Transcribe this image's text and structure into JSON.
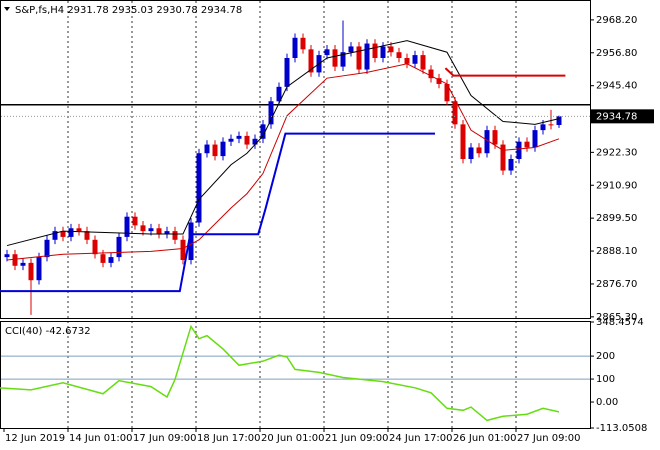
{
  "chart_data": [
    {
      "type": "candlestick",
      "title": "S&P,fs,H4 2931.78 2935.03 2930.78 2934.78",
      "categories": [
        "12 Jun 2019",
        null,
        null,
        null,
        null,
        null,
        null,
        null,
        "14 Jun 01:00",
        null,
        null,
        null,
        null,
        null,
        null,
        null,
        "17 Jun 09:00",
        null,
        null,
        null,
        null,
        null,
        null,
        null,
        "18 Jun 17:00",
        null,
        null,
        null,
        null,
        null,
        null,
        null,
        "20 Jun 01:00",
        null,
        null,
        null,
        null,
        null,
        null,
        null,
        "21 Jun 09:00",
        null,
        null,
        null,
        null,
        null,
        null,
        null,
        "24 Jun 17:00",
        null,
        null,
        null,
        null,
        null,
        null,
        null,
        "26 Jun 01:00",
        null,
        null,
        null,
        null,
        null,
        null,
        null,
        "27 Jun 09:00",
        null,
        null,
        null,
        null,
        null
      ],
      "open": [
        2886,
        2887,
        2883,
        2884,
        2878,
        2886,
        2892,
        2895,
        2893,
        2896,
        2895,
        2892,
        2887,
        2884,
        2886,
        2893,
        2900,
        2897,
        2895,
        2896,
        2894,
        2895,
        2892,
        2885,
        2898,
        2922,
        2925,
        2921,
        2926,
        2927,
        2928,
        2925,
        2927,
        2932,
        2940,
        2945,
        2955,
        2962,
        2958,
        2950,
        2956,
        2958,
        2952,
        2957,
        2959,
        2951,
        2960,
        2955,
        2959,
        2957,
        2955,
        2953,
        2956,
        2951,
        2948,
        2946,
        2940,
        2932,
        2920,
        2924,
        2922,
        2930,
        2925,
        2916,
        2920,
        2926,
        2924,
        2930,
        2932,
        2931.78
      ],
      "high": [
        2888.5,
        2888.5,
        2885.5,
        2885.5,
        2887.5,
        2893.5,
        2896.5,
        2896.5,
        2897.5,
        2897.5,
        2896.5,
        2893.5,
        2888.5,
        2887.5,
        2894.5,
        2901.5,
        2901.5,
        2898.5,
        2897.5,
        2897.5,
        2896.5,
        2896.5,
        2893.5,
        2899.5,
        2923.5,
        2926.5,
        2926.5,
        2927.5,
        2928.5,
        2929.5,
        2929.5,
        2928.5,
        2933.5,
        2941.5,
        2946.5,
        2956.5,
        2963.5,
        2963.5,
        2959.5,
        2957.5,
        2959.5,
        2959.5,
        2968,
        2960.5,
        2960.5,
        2961.5,
        2961.5,
        2960.5,
        2960.5,
        2958.5,
        2956.5,
        2957.5,
        2957.5,
        2952.5,
        2949.5,
        2947.5,
        2941.5,
        2933.5,
        2925.5,
        2925.5,
        2931.5,
        2931.5,
        2926.5,
        2921.5,
        2927.5,
        2927.5,
        2931.5,
        2933.5,
        2937,
        2935.03
      ],
      "low": [
        2884.5,
        2881.5,
        2881.5,
        2866,
        2876.5,
        2884.5,
        2890.5,
        2891.5,
        2891.5,
        2893.5,
        2890.5,
        2885.5,
        2882.5,
        2882.5,
        2884.5,
        2891.5,
        2895.5,
        2893.5,
        2893.5,
        2892.5,
        2892.5,
        2890.5,
        2883.5,
        2883.5,
        2896.5,
        2920.5,
        2919.5,
        2919.5,
        2924.5,
        2925.5,
        2923.5,
        2923.5,
        2925.5,
        2930.5,
        2938.5,
        2943.5,
        2953.5,
        2956.5,
        2948.5,
        2948.5,
        2954.5,
        2950.5,
        2950.5,
        2955.5,
        2949.5,
        2949.5,
        2953.5,
        2953.5,
        2955.5,
        2953.5,
        2951.5,
        2951.5,
        2949.5,
        2946.5,
        2944.5,
        2938.5,
        2930.5,
        2918.5,
        2918.5,
        2920.5,
        2920.5,
        2923.5,
        2914.5,
        2914.5,
        2918.5,
        2922.5,
        2922.5,
        2928.5,
        2930.28,
        2930.78
      ],
      "close": [
        2887,
        2883,
        2884,
        2878,
        2886,
        2892,
        2895,
        2893,
        2896,
        2895,
        2892,
        2887,
        2884,
        2886,
        2893,
        2900,
        2897,
        2895,
        2896,
        2894,
        2895,
        2892,
        2885,
        2898,
        2922,
        2925,
        2921,
        2926,
        2927,
        2928,
        2925,
        2927,
        2932,
        2940,
        2945,
        2955,
        2962,
        2958,
        2950,
        2956,
        2958,
        2952,
        2957,
        2959,
        2951,
        2960,
        2955,
        2959,
        2957,
        2955,
        2953,
        2956,
        2951,
        2948,
        2946,
        2940,
        2932,
        2920,
        2924,
        2922,
        2930,
        2925,
        2916,
        2920,
        2926,
        2924,
        2930,
        2932,
        2931.78,
        2934.78
      ],
      "up_color": "#0000cc",
      "down_color": "#dd0000",
      "overlays": [
        {
          "color": "#000000",
          "x": [
            0,
            7,
            18,
            22,
            24,
            28,
            30,
            32,
            35,
            40,
            45,
            50,
            55,
            58,
            62,
            66,
            69
          ],
          "values": [
            2890,
            2895,
            2894,
            2894,
            2906,
            2918,
            2922,
            2928,
            2945,
            2955,
            2958,
            2961,
            2957,
            2942,
            2933,
            2932,
            2934
          ]
        },
        {
          "color": "#cc0000",
          "x": [
            0,
            7,
            18,
            22,
            24,
            28,
            30,
            32,
            35,
            40,
            45,
            50,
            55,
            58,
            62,
            66,
            69
          ],
          "values": [
            2885,
            2887,
            2888,
            2889,
            2892,
            2903,
            2908,
            2915,
            2935,
            2948,
            2950,
            2953,
            2946,
            2930,
            2923,
            2924,
            2927
          ]
        },
        {
          "color": "#0000dd",
          "x": [
            -1,
            21.6,
            22.9,
            31.4,
            32.3,
            34.8,
            53.5
          ],
          "values": [
            2874.2,
            2874.2,
            2893.9,
            2893.9,
            2902.6,
            2928.8,
            2928.8
          ]
        },
        {
          "color": "#dd0000",
          "x": [
            54.8,
            55.8,
            69.8
          ],
          "values": [
            2951.5,
            2948.9,
            2948.9
          ]
        }
      ],
      "hline": 2938.8,
      "ylim": [
        2864.9,
        2974.4
      ],
      "yticks": [
        {
          "value": 2968.2,
          "label": "2968.20"
        },
        {
          "value": 2956.8,
          "label": "2956.80"
        },
        {
          "value": 2945.4,
          "label": "2945.40"
        },
        {
          "value": 2922.3,
          "label": "2922.30"
        },
        {
          "value": 2910.9,
          "label": "2910.90"
        },
        {
          "value": 2899.5,
          "label": "2899.50"
        },
        {
          "value": 2888.1,
          "label": "2888.10"
        },
        {
          "value": 2876.7,
          "label": "2876.70"
        },
        {
          "value": 2865.3,
          "label": "2865.30"
        }
      ]
    },
    {
      "type": "line",
      "title": "CCI(40) -42.6732",
      "color": "#66dd11",
      "x": [
        -1,
        3,
        7,
        12,
        14,
        18,
        20,
        21,
        23,
        24,
        25,
        27,
        29,
        32,
        34,
        35,
        36,
        39,
        42,
        47,
        51,
        53,
        55,
        57,
        58,
        60,
        62,
        65,
        67,
        69
      ],
      "values": [
        62,
        53,
        84,
        36,
        93,
        67,
        22,
        98,
        329,
        276,
        289,
        231,
        160,
        178,
        204,
        196,
        142,
        129,
        107,
        89,
        62,
        40,
        -27,
        -36,
        -22,
        -80,
        -62,
        -53,
        -27,
        -42.6732
      ],
      "ylim": [
        -113.0508,
        348.4574
      ],
      "yticks": [
        348.4574,
        200,
        100,
        {
          "value": 0,
          "label": "0.00"
        },
        -113.0508
      ],
      "levels": [
        200,
        100
      ]
    }
  ]
}
